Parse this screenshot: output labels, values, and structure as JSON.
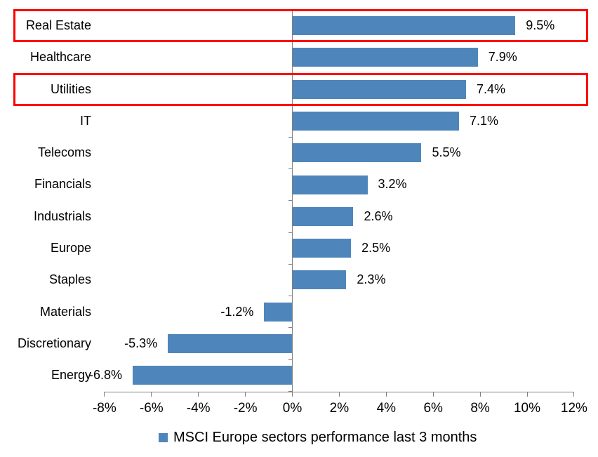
{
  "chart_data": {
    "type": "bar",
    "orientation": "horizontal",
    "categories": [
      "Real Estate",
      "Healthcare",
      "Utilities",
      "IT",
      "Telecoms",
      "Financials",
      "Industrials",
      "Europe",
      "Staples",
      "Materials",
      "Discretionary",
      "Energy"
    ],
    "values": [
      9.5,
      7.9,
      7.4,
      7.1,
      5.5,
      3.2,
      2.6,
      2.5,
      2.3,
      -1.2,
      -5.3,
      -6.8
    ],
    "value_labels": [
      "9.5%",
      "7.9%",
      "7.4%",
      "7.1%",
      "5.5%",
      "3.2%",
      "2.6%",
      "2.5%",
      "2.3%",
      "-1.2%",
      "-5.3%",
      "-6.8%"
    ],
    "highlighted_categories": [
      "Real Estate",
      "Utilities"
    ],
    "bar_color": "#4e86bc",
    "highlight_color": "#ff0000",
    "axis": {
      "min": -8,
      "max": 12,
      "step": 2,
      "tick_labels": [
        "-8%",
        "-6%",
        "-4%",
        "-2%",
        "0%",
        "2%",
        "4%",
        "6%",
        "8%",
        "10%",
        "12%"
      ],
      "line_color": "#808080"
    },
    "grid": false,
    "legend": {
      "label": "MSCI Europe sectors performance last 3 months",
      "marker_color": "#4e86bc",
      "position": "bottom"
    }
  }
}
